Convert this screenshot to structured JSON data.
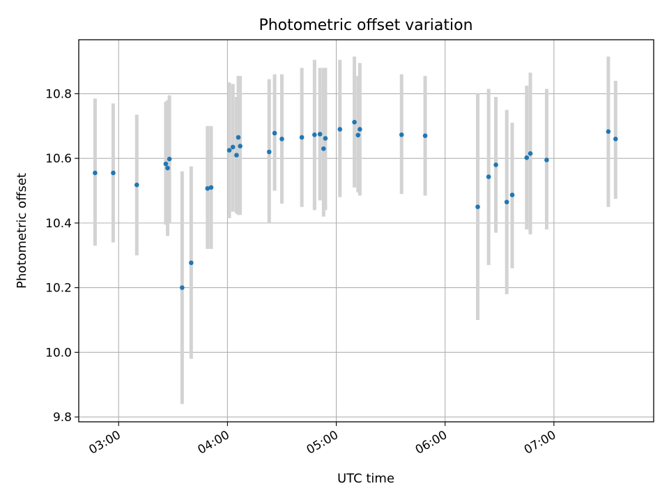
{
  "chart_data": {
    "type": "scatter",
    "title": "Photometric offset variation",
    "xlabel": "UTC time",
    "ylabel": "Photometric offset",
    "xlim": [
      "02:38",
      "07:55"
    ],
    "ylim": [
      9.785,
      10.967
    ],
    "x_ticks": [
      "03:00",
      "04:00",
      "05:00",
      "06:00",
      "07:00"
    ],
    "y_ticks": [
      9.8,
      10.0,
      10.2,
      10.4,
      10.6,
      10.8
    ],
    "grid": true,
    "colors": {
      "point": "#1f77b4",
      "errorbar": "#d3d3d3",
      "grid": "#b0b0b0"
    },
    "points": [
      {
        "x": "02:47",
        "y": 10.555,
        "lo": 10.33,
        "hi": 10.785
      },
      {
        "x": "02:57",
        "y": 10.555,
        "lo": 10.34,
        "hi": 10.77
      },
      {
        "x": "03:10",
        "y": 10.518,
        "lo": 10.3,
        "hi": 10.735
      },
      {
        "x": "03:26",
        "y": 10.583,
        "lo": 10.395,
        "hi": 10.775
      },
      {
        "x": "03:27",
        "y": 10.57,
        "lo": 10.36,
        "hi": 10.78
      },
      {
        "x": "03:28",
        "y": 10.598,
        "lo": 10.4,
        "hi": 10.795
      },
      {
        "x": "03:35",
        "y": 10.2,
        "lo": 9.84,
        "hi": 10.56
      },
      {
        "x": "03:40",
        "y": 10.277,
        "lo": 9.98,
        "hi": 10.575
      },
      {
        "x": "03:49",
        "y": 10.507,
        "lo": 10.32,
        "hi": 10.7
      },
      {
        "x": "03:51",
        "y": 10.51,
        "lo": 10.32,
        "hi": 10.7
      },
      {
        "x": "04:01",
        "y": 10.625,
        "lo": 10.415,
        "hi": 10.835
      },
      {
        "x": "04:03",
        "y": 10.635,
        "lo": 10.435,
        "hi": 10.83
      },
      {
        "x": "04:05",
        "y": 10.61,
        "lo": 10.43,
        "hi": 10.79
      },
      {
        "x": "04:06",
        "y": 10.665,
        "lo": 10.425,
        "hi": 10.855
      },
      {
        "x": "04:07",
        "y": 10.638,
        "lo": 10.425,
        "hi": 10.855
      },
      {
        "x": "04:23",
        "y": 10.62,
        "lo": 10.4,
        "hi": 10.845
      },
      {
        "x": "04:26",
        "y": 10.678,
        "lo": 10.5,
        "hi": 10.86
      },
      {
        "x": "04:30",
        "y": 10.66,
        "lo": 10.46,
        "hi": 10.86
      },
      {
        "x": "04:41",
        "y": 10.665,
        "lo": 10.45,
        "hi": 10.88
      },
      {
        "x": "04:48",
        "y": 10.673,
        "lo": 10.44,
        "hi": 10.905
      },
      {
        "x": "04:51",
        "y": 10.675,
        "lo": 10.47,
        "hi": 10.88
      },
      {
        "x": "04:53",
        "y": 10.63,
        "lo": 10.42,
        "hi": 10.88
      },
      {
        "x": "04:54",
        "y": 10.662,
        "lo": 10.44,
        "hi": 10.88
      },
      {
        "x": "05:02",
        "y": 10.69,
        "lo": 10.48,
        "hi": 10.905
      },
      {
        "x": "05:10",
        "y": 10.712,
        "lo": 10.51,
        "hi": 10.915
      },
      {
        "x": "05:12",
        "y": 10.672,
        "lo": 10.495,
        "hi": 10.855
      },
      {
        "x": "05:13",
        "y": 10.69,
        "lo": 10.485,
        "hi": 10.895
      },
      {
        "x": "05:36",
        "y": 10.673,
        "lo": 10.49,
        "hi": 10.86
      },
      {
        "x": "05:49",
        "y": 10.67,
        "lo": 10.485,
        "hi": 10.855
      },
      {
        "x": "06:18",
        "y": 10.45,
        "lo": 10.1,
        "hi": 10.8
      },
      {
        "x": "06:24",
        "y": 10.543,
        "lo": 10.27,
        "hi": 10.815
      },
      {
        "x": "06:28",
        "y": 10.58,
        "lo": 10.37,
        "hi": 10.79
      },
      {
        "x": "06:34",
        "y": 10.465,
        "lo": 10.18,
        "hi": 10.75
      },
      {
        "x": "06:37",
        "y": 10.487,
        "lo": 10.26,
        "hi": 10.71
      },
      {
        "x": "06:45",
        "y": 10.602,
        "lo": 10.38,
        "hi": 10.825
      },
      {
        "x": "06:47",
        "y": 10.615,
        "lo": 10.365,
        "hi": 10.865
      },
      {
        "x": "06:56",
        "y": 10.595,
        "lo": 10.38,
        "hi": 10.815
      },
      {
        "x": "07:30",
        "y": 10.683,
        "lo": 10.45,
        "hi": 10.915
      },
      {
        "x": "07:34",
        "y": 10.66,
        "lo": 10.475,
        "hi": 10.84
      }
    ]
  }
}
